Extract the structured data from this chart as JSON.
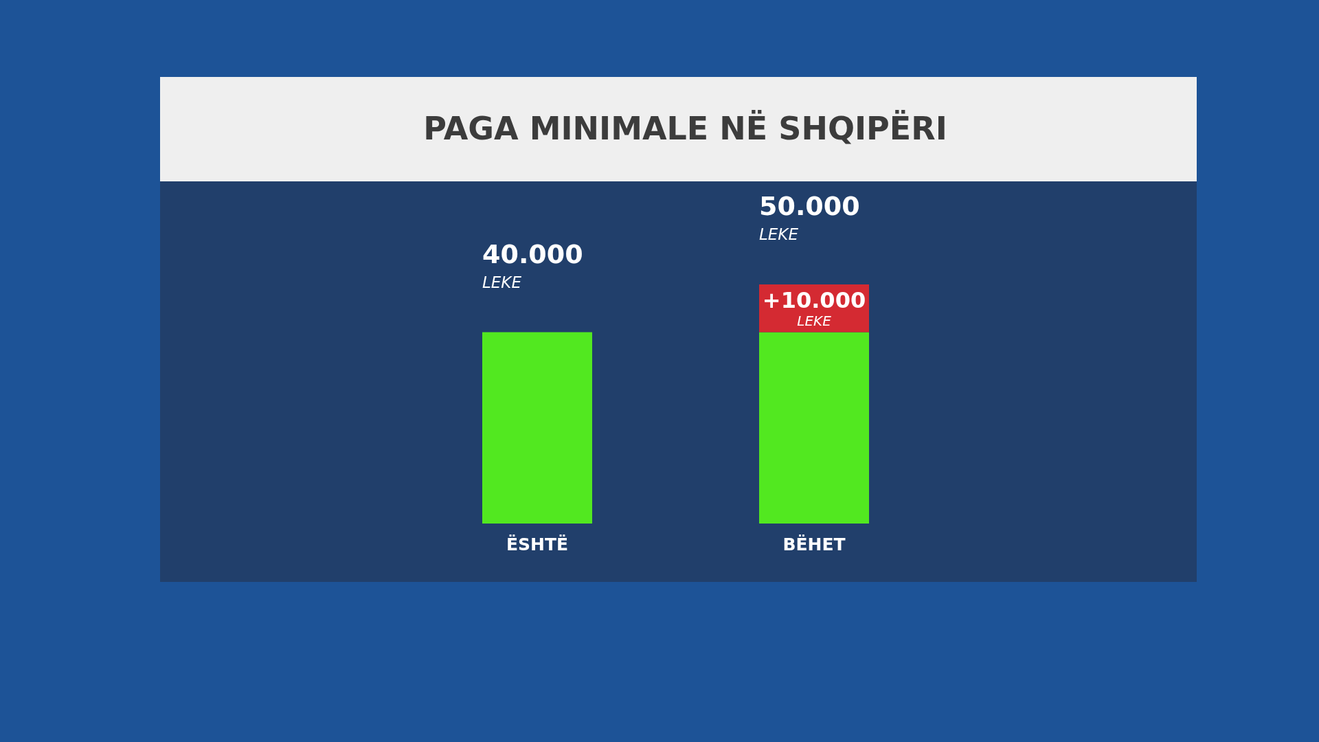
{
  "chart_data": {
    "type": "bar",
    "title": "PAGA MINIMALE NË SHQIPËRI",
    "categories": [
      "ËSHTË",
      "BËHET"
    ],
    "stacked": true,
    "series": [
      {
        "color": "#52e820",
        "values": [
          40000,
          40000
        ],
        "value_labels": [
          "40.000\nLEKE",
          null
        ]
      },
      {
        "color": "#d42a32",
        "values": [
          null,
          10000
        ],
        "value_labels": [
          null,
          "+10.000\nLEKE"
        ]
      }
    ],
    "totals": [
      null,
      "50.000\nLEKE"
    ],
    "tick_labels": "x"
  }
}
